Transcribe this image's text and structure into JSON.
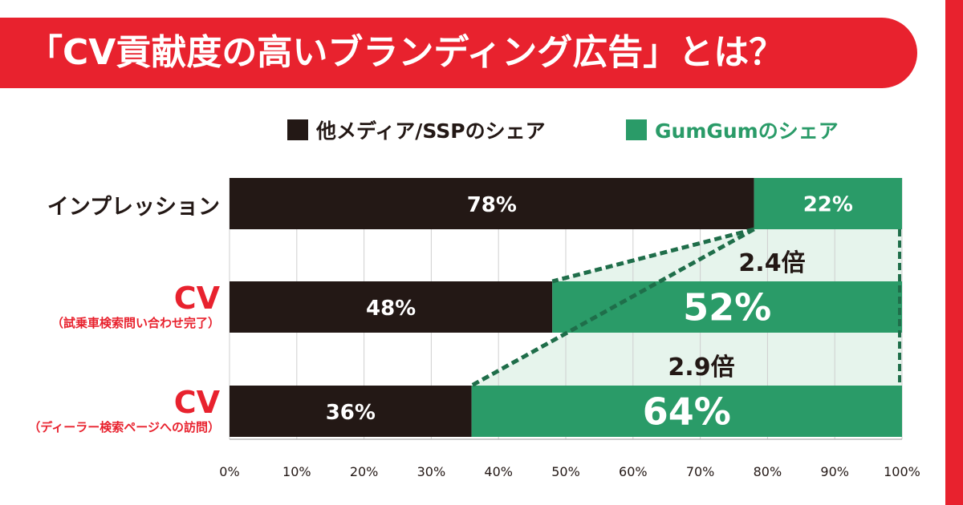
{
  "banner": {
    "title": "「CV貢献度の高いブランディング広告」とは？"
  },
  "legend": [
    {
      "label": "他メディア/SSPのシェア",
      "color": "#231815"
    },
    {
      "label": "GumGumのシェア",
      "color": "#2a9b68"
    }
  ],
  "rows": [
    {
      "label": "インプレッション",
      "sublabel": ""
    },
    {
      "label": "CV",
      "sublabel": "（試乗車検索問い合わせ完了）"
    },
    {
      "label": "CV",
      "sublabel": "（ディーラー検索ページへの訪問）"
    }
  ],
  "chart_data": {
    "type": "bar",
    "orientation": "horizontal",
    "stacked": true,
    "categories": [
      "インプレッション",
      "CV（試乗車検索問い合わせ完了）",
      "CV（ディーラー検索ページへの訪問）"
    ],
    "series": [
      {
        "name": "他メディア/SSPのシェア",
        "values": [
          78,
          48,
          36
        ],
        "labels": [
          "78%",
          "48%",
          "36%"
        ],
        "color": "#231815"
      },
      {
        "name": "GumGumのシェア",
        "values": [
          22,
          52,
          64
        ],
        "labels": [
          "22%",
          "52%",
          "64%"
        ],
        "color": "#2a9b68"
      }
    ],
    "xlim": [
      0,
      100
    ],
    "xticks": [
      "0%",
      "10%",
      "20%",
      "30%",
      "40%",
      "50%",
      "60%",
      "70%",
      "80%",
      "90%",
      "100%"
    ],
    "grid": true,
    "annotations": [
      {
        "text": "2.4倍",
        "target_row": 1
      },
      {
        "text": "2.9倍",
        "target_row": 2
      }
    ],
    "legend_position": "top"
  }
}
